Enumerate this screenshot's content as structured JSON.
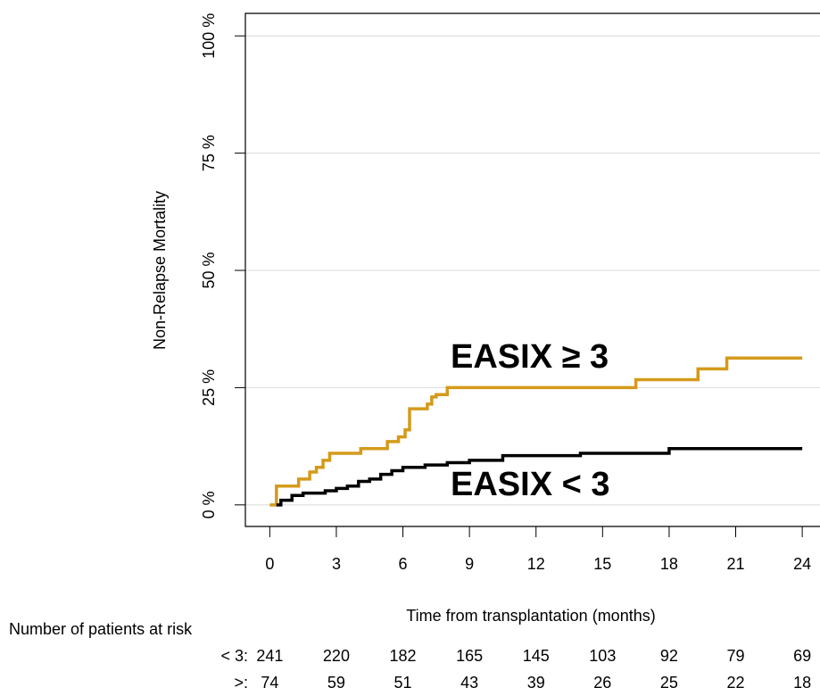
{
  "chart_data": {
    "type": "line",
    "step": true,
    "grid": true,
    "y_label": "Non-Relapse Mortality",
    "x_label": "Time from transplantation (months)",
    "xlim": [
      -1.1,
      24.8
    ],
    "ylim": [
      -4.6,
      104.8
    ],
    "xticks": [
      0,
      3,
      6,
      9,
      12,
      15,
      18,
      21,
      24
    ],
    "yticks": [
      {
        "value": 0,
        "label": "0 %"
      },
      {
        "value": 25,
        "label": "25 %"
      },
      {
        "value": 50,
        "label": "50 %"
      },
      {
        "value": 75,
        "label": "75 %"
      },
      {
        "value": 100,
        "label": "100 %"
      }
    ],
    "series": [
      {
        "name": "EASIX ≥ 3",
        "color": "#d49a1a",
        "x": [
          0,
          0.3,
          1.3,
          1.8,
          2.1,
          2.4,
          2.7,
          4.1,
          5.3,
          5.8,
          6.1,
          6.3,
          7.1,
          7.3,
          7.5,
          8.0,
          16.5,
          19.3,
          20.6,
          24
        ],
        "values": [
          0,
          4,
          5.5,
          7,
          8,
          9.5,
          11,
          12,
          13.5,
          14.5,
          16,
          20.5,
          21.5,
          23,
          23.5,
          25,
          26.7,
          29,
          31.3,
          31.3
        ]
      },
      {
        "name": "EASIX < 3",
        "color": "#000000",
        "x": [
          0.3,
          0.5,
          1,
          1.5,
          2.5,
          3,
          3.5,
          4,
          4.5,
          5,
          5.5,
          6,
          7,
          8,
          9,
          10.5,
          14,
          18,
          24
        ],
        "values": [
          0,
          1,
          2,
          2.5,
          3,
          3.5,
          4,
          5,
          5.5,
          6.5,
          7.3,
          8,
          8.5,
          9,
          9.5,
          10.5,
          11,
          12,
          12
        ]
      }
    ],
    "risk_table": {
      "title": "Number of patients at risk",
      "rows": [
        {
          "label": "< 3:",
          "color": "#000000",
          "values": [
            241,
            220,
            182,
            165,
            145,
            103,
            92,
            79,
            69
          ]
        },
        {
          "label": ">:",
          "color": "#d49a1a",
          "values": [
            74,
            59,
            51,
            43,
            39,
            26,
            25,
            22,
            18
          ]
        }
      ]
    }
  }
}
